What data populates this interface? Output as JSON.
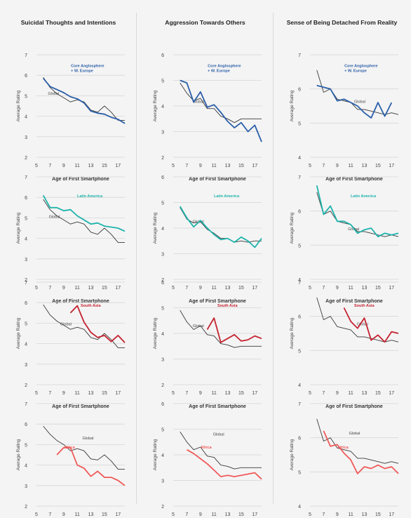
{
  "column_titles": [
    "Suicidal Thoughts and Intentions",
    "Aggression Towards Others",
    "Sense of Being Detached From Reality"
  ],
  "common": {
    "xlabel": "Age of First Smartphone",
    "ylabel": "Average Rating",
    "x_ticks": [
      5,
      7,
      9,
      11,
      13,
      15,
      17
    ],
    "global_label": "Global"
  },
  "colors": {
    "global": "#3a3a3a",
    "Core Anglosphere + W. Europe": "#2b5fa8",
    "Latin America": "#1fb3ac",
    "South Asia": "#c4232f",
    "Africa": "#f05a5a"
  },
  "chart_data": [
    {
      "type": "line",
      "row": 0,
      "col": 0,
      "title": "Suicidal Thoughts and Intentions",
      "xlabel": "Age of First Smartphone",
      "ylabel": "Average Rating",
      "xlim": [
        5,
        18
      ],
      "ylim": [
        2,
        7
      ],
      "y_ticks": [
        2,
        3,
        4,
        5,
        6,
        7
      ],
      "x": [
        6,
        7,
        8,
        9,
        10,
        11,
        12,
        13,
        14,
        15,
        16,
        17,
        18
      ],
      "series": [
        {
          "name": "Global",
          "values": [
            5.9,
            5.4,
            5.1,
            4.9,
            4.7,
            4.8,
            4.7,
            4.3,
            4.2,
            4.5,
            4.2,
            3.8,
            3.8
          ]
        },
        {
          "name": "Core Anglosphere + W. Europe",
          "values": [
            5.85,
            5.45,
            5.3,
            5.15,
            4.95,
            4.85,
            4.65,
            4.25,
            4.15,
            4.1,
            3.95,
            3.85,
            3.65
          ]
        }
      ]
    },
    {
      "type": "line",
      "row": 0,
      "col": 1,
      "title": "Aggression Towards Others",
      "xlabel": "Age of First Smartphone",
      "ylabel": "Average Rating",
      "xlim": [
        5,
        18
      ],
      "ylim": [
        2,
        6
      ],
      "y_ticks": [
        2,
        3,
        4,
        5,
        6
      ],
      "x": [
        6,
        7,
        8,
        9,
        10,
        11,
        12,
        13,
        14,
        15,
        16,
        17,
        18
      ],
      "series": [
        {
          "name": "Global",
          "values": [
            4.9,
            4.5,
            4.2,
            4.3,
            3.9,
            3.9,
            3.6,
            3.5,
            3.35,
            3.5,
            3.5,
            3.5,
            3.5
          ]
        },
        {
          "name": "Core Anglosphere + W. Europe",
          "values": [
            5.0,
            4.9,
            4.15,
            4.55,
            3.95,
            4.05,
            3.75,
            3.4,
            3.15,
            3.35,
            3.0,
            3.25,
            2.6
          ]
        }
      ]
    },
    {
      "type": "line",
      "row": 0,
      "col": 2,
      "title": "Sense of Being Detached From Reality",
      "xlabel": "Age of First Smartphone",
      "ylabel": "Average Rating",
      "xlim": [
        5,
        18
      ],
      "ylim": [
        4,
        7
      ],
      "y_ticks": [
        4,
        5,
        6,
        7
      ],
      "x": [
        6,
        7,
        8,
        9,
        10,
        11,
        12,
        13,
        14,
        15,
        16,
        17,
        18
      ],
      "series": [
        {
          "name": "Global",
          "values": [
            6.55,
            5.9,
            6.0,
            5.7,
            5.65,
            5.6,
            5.4,
            5.4,
            5.35,
            5.3,
            5.25,
            5.3,
            5.25
          ]
        },
        {
          "name": "Core Anglosphere + W. Europe",
          "values": [
            6.1,
            6.05,
            6.0,
            5.65,
            5.7,
            5.6,
            5.5,
            5.3,
            5.15,
            5.6,
            5.2,
            5.6,
            null
          ]
        }
      ]
    },
    {
      "type": "line",
      "row": 1,
      "col": 0,
      "xlabel": "Age of First Smartphone",
      "ylabel": "Average Rating",
      "xlim": [
        5,
        18
      ],
      "ylim": [
        2,
        7
      ],
      "y_ticks": [
        2,
        3,
        4,
        5,
        6,
        7
      ],
      "x": [
        6,
        7,
        8,
        9,
        10,
        11,
        12,
        13,
        14,
        15,
        16,
        17,
        18
      ],
      "series": [
        {
          "name": "Global",
          "values": [
            5.9,
            5.4,
            5.1,
            4.9,
            4.7,
            4.8,
            4.7,
            4.3,
            4.2,
            4.5,
            4.2,
            3.8,
            3.8
          ]
        },
        {
          "name": "Latin America",
          "values": [
            6.1,
            5.5,
            5.5,
            5.35,
            5.4,
            5.1,
            4.9,
            4.7,
            4.75,
            4.6,
            4.55,
            4.5,
            4.35
          ]
        }
      ]
    },
    {
      "type": "line",
      "row": 1,
      "col": 1,
      "xlabel": "Age of First Smartphone",
      "ylabel": "Average Rating",
      "xlim": [
        5,
        18
      ],
      "ylim": [
        2,
        6
      ],
      "y_ticks": [
        2,
        3,
        4,
        5,
        6
      ],
      "x": [
        6,
        7,
        8,
        9,
        10,
        11,
        12,
        13,
        14,
        15,
        16,
        17,
        18
      ],
      "series": [
        {
          "name": "Global",
          "values": [
            4.8,
            4.35,
            4.2,
            4.25,
            3.95,
            3.8,
            3.6,
            3.6,
            3.45,
            3.5,
            3.45,
            3.5,
            3.5
          ]
        },
        {
          "name": "Latin America",
          "values": [
            4.85,
            4.4,
            4.05,
            4.3,
            4.0,
            3.75,
            3.55,
            3.6,
            3.45,
            3.65,
            3.5,
            3.25,
            3.6
          ]
        }
      ]
    },
    {
      "type": "line",
      "row": 1,
      "col": 2,
      "xlabel": "Age of First Smartphone",
      "ylabel": "Average Rating",
      "xlim": [
        5,
        18
      ],
      "ylim": [
        4,
        7
      ],
      "y_ticks": [
        4,
        5,
        6,
        7
      ],
      "x": [
        6,
        7,
        8,
        9,
        10,
        11,
        12,
        13,
        14,
        15,
        16,
        17,
        18
      ],
      "series": [
        {
          "name": "Global",
          "values": [
            6.55,
            5.9,
            6.0,
            5.7,
            5.65,
            5.6,
            5.4,
            5.4,
            5.35,
            5.3,
            5.25,
            5.3,
            5.25
          ]
        },
        {
          "name": "Latin America",
          "values": [
            6.75,
            5.9,
            6.15,
            5.7,
            5.7,
            5.6,
            5.35,
            5.45,
            5.5,
            5.25,
            5.35,
            5.3,
            5.35
          ]
        }
      ]
    },
    {
      "type": "line",
      "row": 2,
      "col": 0,
      "xlabel": "Age of First Smartphone",
      "ylabel": "Average Rating",
      "xlim": [
        5,
        18
      ],
      "ylim": [
        2,
        7
      ],
      "y_ticks": [
        2,
        3,
        4,
        5,
        6,
        7
      ],
      "x": [
        6,
        7,
        8,
        9,
        10,
        11,
        12,
        13,
        14,
        15,
        16,
        17,
        18
      ],
      "series": [
        {
          "name": "Global",
          "values": [
            5.9,
            5.4,
            5.1,
            4.9,
            4.7,
            4.8,
            4.7,
            4.3,
            4.2,
            4.5,
            4.2,
            3.8,
            3.8
          ]
        },
        {
          "name": "South Asia",
          "values": [
            null,
            null,
            null,
            null,
            5.5,
            5.85,
            5.05,
            4.55,
            4.3,
            4.4,
            4.1,
            4.4,
            4.05
          ]
        }
      ]
    },
    {
      "type": "line",
      "row": 2,
      "col": 1,
      "xlabel": "Age of First Smartphone",
      "ylabel": "Average Rating",
      "xlim": [
        5,
        18
      ],
      "ylim": [
        2,
        6
      ],
      "y_ticks": [
        2,
        3,
        4,
        5,
        6
      ],
      "x": [
        6,
        7,
        8,
        9,
        10,
        11,
        12,
        13,
        14,
        15,
        16,
        17,
        18
      ],
      "series": [
        {
          "name": "Global",
          "values": [
            4.9,
            4.45,
            4.15,
            4.3,
            3.95,
            3.9,
            3.6,
            3.55,
            3.45,
            3.5,
            3.5,
            3.5,
            3.5
          ]
        },
        {
          "name": "South Asia",
          "values": [
            null,
            null,
            null,
            null,
            4.15,
            4.6,
            3.65,
            3.8,
            3.95,
            3.7,
            3.75,
            3.9,
            3.8
          ]
        }
      ]
    },
    {
      "type": "line",
      "row": 2,
      "col": 2,
      "xlabel": "Age of First Smartphone",
      "ylabel": "Average Rating",
      "xlim": [
        5,
        18
      ],
      "ylim": [
        4,
        7
      ],
      "y_ticks": [
        4,
        5,
        6,
        7
      ],
      "x": [
        6,
        7,
        8,
        9,
        10,
        11,
        12,
        13,
        14,
        15,
        16,
        17,
        18
      ],
      "series": [
        {
          "name": "Global",
          "values": [
            6.55,
            5.9,
            6.0,
            5.7,
            5.65,
            5.6,
            5.4,
            5.4,
            5.35,
            5.3,
            5.25,
            5.3,
            5.25
          ]
        },
        {
          "name": "South Asia",
          "values": [
            null,
            null,
            null,
            null,
            6.25,
            5.85,
            5.65,
            5.95,
            5.3,
            5.45,
            5.25,
            5.55,
            5.5
          ]
        }
      ]
    },
    {
      "type": "line",
      "row": 3,
      "col": 0,
      "xlabel": "Age of First Smartphone",
      "ylabel": "Average Rating",
      "xlim": [
        5,
        18
      ],
      "ylim": [
        2,
        7
      ],
      "y_ticks": [
        2,
        3,
        4,
        5,
        6,
        7
      ],
      "x": [
        6,
        7,
        8,
        9,
        10,
        11,
        12,
        13,
        14,
        15,
        16,
        17,
        18
      ],
      "series": [
        {
          "name": "Global",
          "values": [
            5.9,
            5.5,
            5.2,
            5.0,
            4.7,
            4.8,
            4.7,
            4.3,
            4.25,
            4.5,
            4.2,
            3.8,
            3.8
          ]
        },
        {
          "name": "Africa",
          "values": [
            null,
            null,
            4.5,
            4.85,
            4.85,
            4.0,
            3.85,
            3.45,
            3.7,
            3.4,
            3.4,
            3.25,
            3.0
          ]
        }
      ]
    },
    {
      "type": "line",
      "row": 3,
      "col": 1,
      "xlabel": "Age of First Smartphone",
      "ylabel": "Average Rating",
      "xlim": [
        5,
        18
      ],
      "ylim": [
        2,
        6
      ],
      "y_ticks": [
        2,
        3,
        4,
        5,
        6
      ],
      "x": [
        6,
        7,
        8,
        9,
        10,
        11,
        12,
        13,
        14,
        15,
        16,
        17,
        18
      ],
      "series": [
        {
          "name": "Global",
          "values": [
            4.9,
            4.5,
            4.2,
            4.3,
            3.95,
            3.9,
            3.6,
            3.55,
            3.45,
            3.5,
            3.5,
            3.5,
            3.5
          ]
        },
        {
          "name": "Africa",
          "values": [
            null,
            4.2,
            4.05,
            3.85,
            3.65,
            3.4,
            3.15,
            3.2,
            3.15,
            3.2,
            3.25,
            3.3,
            3.05
          ]
        }
      ]
    },
    {
      "type": "line",
      "row": 3,
      "col": 2,
      "xlabel": "Age of First Smartphone",
      "ylabel": "Average Rating",
      "xlim": [
        5,
        18
      ],
      "ylim": [
        4,
        7
      ],
      "y_ticks": [
        4,
        5,
        6,
        7
      ],
      "x": [
        6,
        7,
        8,
        9,
        10,
        11,
        12,
        13,
        14,
        15,
        16,
        17,
        18
      ],
      "series": [
        {
          "name": "Global",
          "values": [
            6.55,
            5.9,
            6.0,
            5.7,
            5.65,
            5.6,
            5.4,
            5.4,
            5.35,
            5.3,
            5.25,
            5.3,
            5.25
          ]
        },
        {
          "name": "Africa",
          "values": [
            null,
            6.2,
            5.75,
            5.8,
            5.55,
            5.35,
            4.95,
            5.15,
            5.1,
            5.2,
            5.1,
            5.15,
            4.95
          ]
        }
      ]
    }
  ]
}
